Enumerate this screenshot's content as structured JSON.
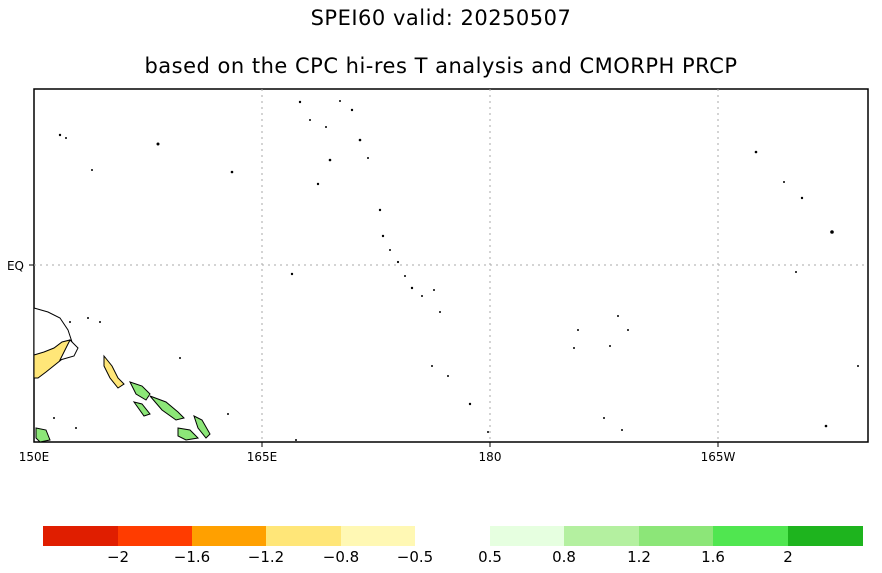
{
  "title": "SPEI60   valid: 20250507",
  "subtitle": "based on the CPC hi-res T analysis and CMORPH PRCP",
  "map": {
    "lon_labels": [
      "150E",
      "165E",
      "180",
      "165W"
    ],
    "lat_labels": [
      "EQ"
    ]
  },
  "colorbar": {
    "dry_colors": [
      "#e01e00",
      "#ff3c00",
      "#ffa000",
      "#ffe678",
      "#fff8b4"
    ],
    "wet_colors": [
      "#e6ffe0",
      "#b4f0a0",
      "#8ce678",
      "#50e650",
      "#1eb41e"
    ],
    "labels": [
      "−2",
      "−1.6",
      "−1.2",
      "−0.8",
      "−0.5",
      "0.5",
      "0.8",
      "1.2",
      "1.6",
      "2"
    ]
  },
  "legend_meaning": {
    "drought_color": "#ffe678",
    "wet_color": "#8ce678"
  }
}
